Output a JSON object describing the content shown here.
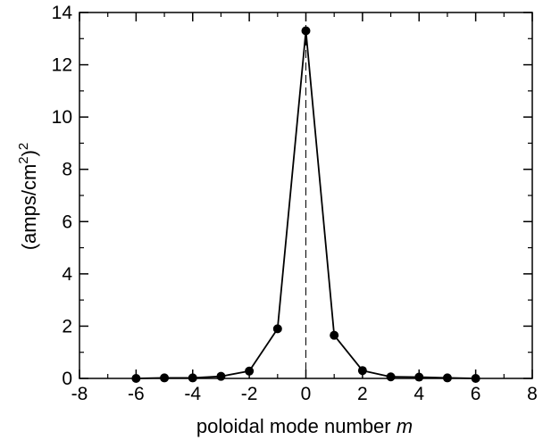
{
  "chart_data": {
    "type": "line",
    "title": "",
    "xlabel": "poloidal mode number",
    "xlabel_var": "m",
    "ylabel_base": "(amps/cm",
    "ylabel_exp_inner": "2",
    "ylabel_close": ")",
    "ylabel_exp_outer": "2",
    "xlim": [
      -8,
      8
    ],
    "ylim": [
      0,
      14
    ],
    "xticks": [
      -8,
      -6,
      -4,
      -2,
      0,
      2,
      4,
      6,
      8
    ],
    "yticks": [
      0,
      2,
      4,
      6,
      8,
      10,
      12,
      14
    ],
    "grid": false,
    "legend": "none",
    "reference_line": {
      "x": 0,
      "style": "dashed"
    },
    "series": [
      {
        "x": [
          -6,
          -5,
          -4,
          -3,
          -2,
          -1,
          0,
          1,
          2,
          3,
          4,
          5,
          6
        ],
        "y": [
          0.0,
          0.02,
          0.02,
          0.08,
          0.28,
          1.9,
          13.3,
          1.65,
          0.3,
          0.06,
          0.05,
          0.02,
          0.0
        ],
        "color": "#000000",
        "marker": "circle"
      }
    ]
  }
}
